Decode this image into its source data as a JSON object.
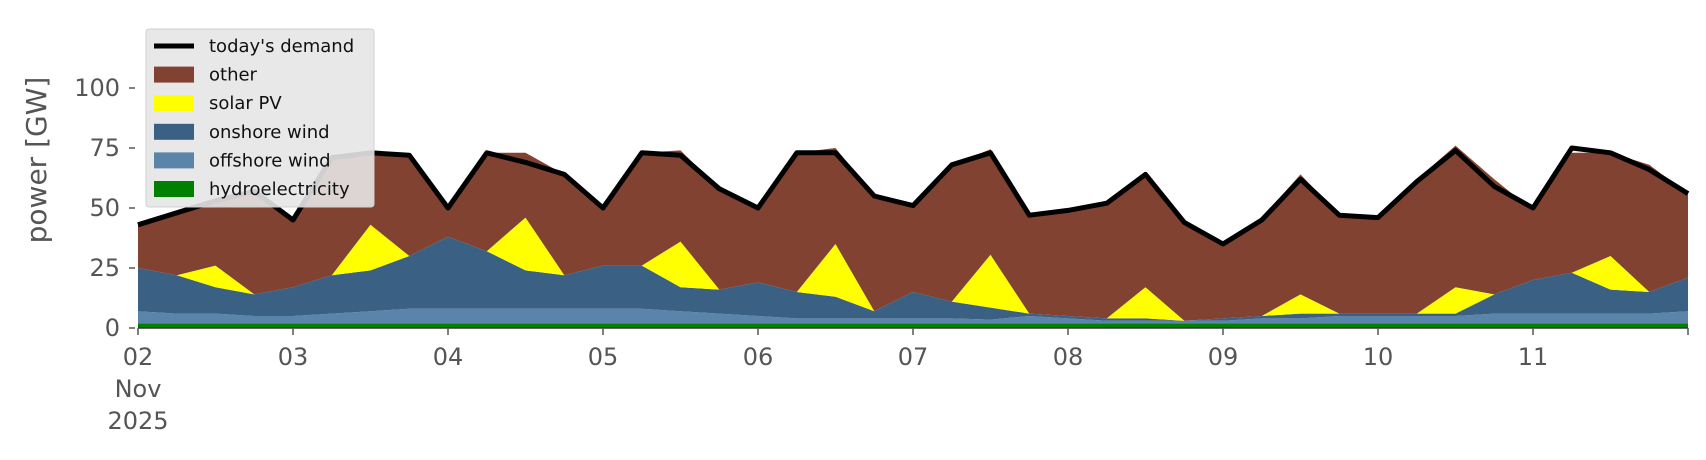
{
  "chart_data": {
    "type": "area",
    "ylabel": "power [GW]",
    "ylim": [
      0,
      120
    ],
    "yticks": [
      0,
      25,
      50,
      75,
      100
    ],
    "xlim": [
      "2025-11-02T00:00",
      "2025-11-12T00:00"
    ],
    "x_tick_labels": [
      "02",
      "03",
      "04",
      "05",
      "06",
      "07",
      "08",
      "09",
      "10",
      "11"
    ],
    "x_tick_dates": [
      "2025-11-02",
      "2025-11-03",
      "2025-11-04",
      "2025-11-05",
      "2025-11-06",
      "2025-11-07",
      "2025-11-08",
      "2025-11-09",
      "2025-11-10",
      "2025-11-11"
    ],
    "x_secondary_label": [
      "Nov",
      "2025"
    ],
    "grid": false,
    "legend_position": "upper-left",
    "x": [
      "2025-11-02T00:00",
      "2025-11-02T06:00",
      "2025-11-02T12:00",
      "2025-11-02T18:00",
      "2025-11-03T00:00",
      "2025-11-03T06:00",
      "2025-11-03T12:00",
      "2025-11-03T18:00",
      "2025-11-04T00:00",
      "2025-11-04T06:00",
      "2025-11-04T12:00",
      "2025-11-04T18:00",
      "2025-11-05T00:00",
      "2025-11-05T06:00",
      "2025-11-05T12:00",
      "2025-11-05T18:00",
      "2025-11-06T00:00",
      "2025-11-06T06:00",
      "2025-11-06T12:00",
      "2025-11-06T18:00",
      "2025-11-07T00:00",
      "2025-11-07T06:00",
      "2025-11-07T12:00",
      "2025-11-07T18:00",
      "2025-11-08T00:00",
      "2025-11-08T06:00",
      "2025-11-08T12:00",
      "2025-11-08T18:00",
      "2025-11-09T00:00",
      "2025-11-09T06:00",
      "2025-11-09T12:00",
      "2025-11-09T18:00",
      "2025-11-10T00:00",
      "2025-11-10T06:00",
      "2025-11-10T12:00",
      "2025-11-10T18:00",
      "2025-11-11T00:00",
      "2025-11-11T06:00",
      "2025-11-11T12:00",
      "2025-11-11T18:00",
      "2025-11-12T00:00"
    ],
    "series": [
      {
        "name": "hydroelectricity",
        "kind": "area",
        "color": "#008000",
        "values": [
          2,
          2,
          2,
          2,
          2,
          2,
          2,
          2,
          2,
          2,
          2,
          2,
          2,
          2,
          2,
          2,
          2,
          2,
          2,
          2,
          2,
          2,
          2,
          2,
          2,
          2,
          2,
          2,
          2,
          2,
          2,
          2,
          2,
          2,
          2,
          2,
          2,
          2,
          2,
          2,
          2
        ]
      },
      {
        "name": "offshore wind",
        "kind": "area",
        "color": "#5b84aa",
        "values": [
          5,
          4,
          4,
          3,
          3,
          4,
          5,
          6,
          6,
          6,
          6,
          6,
          6,
          6,
          5,
          4,
          3,
          2,
          2,
          2,
          2,
          2,
          1.5,
          3,
          2,
          1,
          1,
          1,
          1,
          2,
          2,
          3,
          3,
          3,
          3,
          4,
          4,
          4,
          4,
          4,
          5
        ]
      },
      {
        "name": "onshore wind",
        "kind": "area",
        "color": "#3a6183",
        "values": [
          18,
          16,
          11,
          9,
          12,
          16,
          17,
          22,
          30,
          24,
          16,
          14,
          18,
          18,
          10,
          10,
          14,
          11,
          9,
          3,
          11,
          7,
          5,
          1,
          1,
          1,
          1,
          0,
          1,
          1,
          2,
          1,
          1,
          1,
          1,
          8,
          14,
          17,
          10,
          9,
          14
        ]
      },
      {
        "name": "solar PV",
        "kind": "area",
        "color": "#ffff00",
        "values": [
          0,
          0,
          9,
          0,
          0,
          0,
          19,
          0,
          0,
          0,
          22,
          0,
          0,
          0,
          19,
          0,
          0,
          0,
          22,
          0,
          0,
          0,
          22,
          0,
          0,
          0,
          13,
          0,
          0,
          0,
          8,
          0,
          0,
          0,
          11,
          0,
          0,
          0,
          14,
          0,
          0
        ]
      },
      {
        "name": "other",
        "kind": "area",
        "color": "#824232",
        "values": [
          18,
          26,
          27,
          43,
          28,
          49,
          30,
          42,
          12,
          41,
          27,
          42,
          24,
          47,
          38,
          42,
          31,
          58,
          40,
          48,
          36,
          57,
          44,
          41,
          44,
          49,
          48,
          40,
          31,
          41,
          50,
          41,
          40,
          56,
          59,
          48,
          29,
          50,
          43,
          53,
          35
        ]
      },
      {
        "name": "today's demand",
        "kind": "line",
        "color": "#000000",
        "values": [
          43,
          48,
          53,
          57,
          45,
          71,
          73,
          72,
          50,
          73,
          69,
          64,
          50,
          73,
          72,
          58,
          50,
          73,
          73,
          55,
          51,
          68,
          73,
          47,
          49,
          52,
          64,
          44,
          35,
          45,
          62,
          47,
          46,
          61,
          74,
          59,
          50,
          75,
          73,
          66,
          56
        ]
      }
    ]
  }
}
